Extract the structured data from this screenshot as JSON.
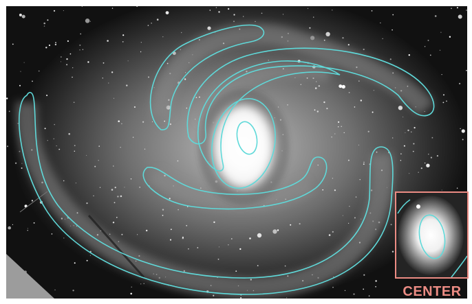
{
  "inset": {
    "label": "CENTER",
    "border_color": "#ec8c84"
  },
  "contours": {
    "color": "#5fd9d9"
  },
  "background_color": "#ffffff"
}
